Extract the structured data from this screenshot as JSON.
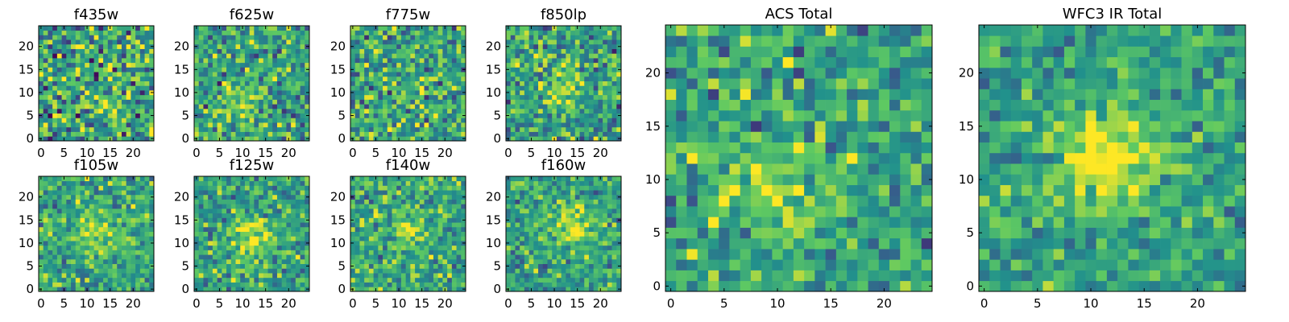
{
  "figure": {
    "colormap": [
      "#440154",
      "#3b528b",
      "#21918c",
      "#5ec962",
      "#fde725"
    ],
    "panels": [
      {
        "id": "f435w",
        "chart_data": {
          "type": "heatmap",
          "title": "f435w",
          "xticks": [
            "0",
            "5",
            "10",
            "15",
            "20"
          ],
          "yticks": [
            "0",
            "5",
            "10",
            "15",
            "20"
          ],
          "xlim": [
            0,
            24
          ],
          "ylim": [
            0,
            24
          ],
          "grid_size": 25,
          "source_center": [
            12,
            12
          ],
          "signal_strength": 0.05,
          "noise_level": 0.36
        }
      },
      {
        "id": "f625w",
        "chart_data": {
          "type": "heatmap",
          "title": "f625w",
          "xticks": [
            "0",
            "5",
            "10",
            "15",
            "20"
          ],
          "yticks": [
            "0",
            "5",
            "10",
            "15",
            "20"
          ],
          "xlim": [
            0,
            24
          ],
          "ylim": [
            0,
            24
          ],
          "grid_size": 25,
          "source_center": [
            9,
            7
          ],
          "signal_strength": 0.18,
          "noise_level": 0.3
        }
      },
      {
        "id": "f775w",
        "chart_data": {
          "type": "heatmap",
          "title": "f775w",
          "xticks": [
            "0",
            "5",
            "10",
            "15",
            "20"
          ],
          "yticks": [
            "0",
            "5",
            "10",
            "15",
            "20"
          ],
          "xlim": [
            0,
            24
          ],
          "ylim": [
            0,
            24
          ],
          "grid_size": 25,
          "source_center": [
            11,
            10
          ],
          "signal_strength": 0.15,
          "noise_level": 0.3
        }
      },
      {
        "id": "f850lp",
        "chart_data": {
          "type": "heatmap",
          "title": "f850lp",
          "xticks": [
            "0",
            "5",
            "10",
            "15",
            "20"
          ],
          "yticks": [
            "0",
            "5",
            "10",
            "15",
            "20"
          ],
          "xlim": [
            0,
            24
          ],
          "ylim": [
            0,
            24
          ],
          "grid_size": 25,
          "source_center": [
            11,
            11
          ],
          "signal_strength": 0.2,
          "noise_level": 0.28
        }
      },
      {
        "id": "f105w",
        "chart_data": {
          "type": "heatmap",
          "title": "f105w",
          "xticks": [
            "0",
            "5",
            "10",
            "15",
            "20"
          ],
          "yticks": [
            "0",
            "5",
            "10",
            "15",
            "20"
          ],
          "xlim": [
            0,
            24
          ],
          "ylim": [
            0,
            24
          ],
          "grid_size": 25,
          "source_center": [
            12,
            12
          ],
          "signal_strength": 0.3,
          "noise_level": 0.24
        }
      },
      {
        "id": "f125w",
        "chart_data": {
          "type": "heatmap",
          "title": "f125w",
          "xticks": [
            "0",
            "5",
            "10",
            "15",
            "20"
          ],
          "yticks": [
            "0",
            "5",
            "10",
            "15",
            "20"
          ],
          "xlim": [
            0,
            24
          ],
          "ylim": [
            0,
            24
          ],
          "grid_size": 25,
          "source_center": [
            12,
            11
          ],
          "signal_strength": 0.35,
          "noise_level": 0.24
        }
      },
      {
        "id": "f140w",
        "chart_data": {
          "type": "heatmap",
          "title": "f140w",
          "xticks": [
            "0",
            "5",
            "10",
            "15",
            "20"
          ],
          "yticks": [
            "0",
            "5",
            "10",
            "15",
            "20"
          ],
          "xlim": [
            0,
            24
          ],
          "ylim": [
            0,
            24
          ],
          "grid_size": 25,
          "source_center": [
            12,
            13
          ],
          "signal_strength": 0.25,
          "noise_level": 0.24
        }
      },
      {
        "id": "f160w",
        "chart_data": {
          "type": "heatmap",
          "title": "f160w",
          "xticks": [
            "0",
            "5",
            "10",
            "15",
            "20"
          ],
          "yticks": [
            "0",
            "5",
            "10",
            "15",
            "20"
          ],
          "xlim": [
            0,
            24
          ],
          "ylim": [
            0,
            24
          ],
          "grid_size": 25,
          "source_center": [
            14,
            14
          ],
          "signal_strength": 0.35,
          "noise_level": 0.22
        }
      },
      {
        "id": "acs-total",
        "chart_data": {
          "type": "heatmap",
          "title": "ACS Total",
          "xticks": [
            "0",
            "5",
            "10",
            "15",
            "20"
          ],
          "yticks": [
            "0",
            "5",
            "10",
            "15",
            "20"
          ],
          "xlim": [
            0,
            24
          ],
          "ylim": [
            0,
            24
          ],
          "grid_size": 25,
          "source_center": [
            10,
            9
          ],
          "signal_strength": 0.3,
          "noise_level": 0.25
        }
      },
      {
        "id": "wfc3-ir-total",
        "chart_data": {
          "type": "heatmap",
          "title": "WFC3 IR Total",
          "xticks": [
            "0",
            "5",
            "10",
            "15",
            "20"
          ],
          "yticks": [
            "0",
            "5",
            "10",
            "15",
            "20"
          ],
          "xlim": [
            0,
            24
          ],
          "ylim": [
            0,
            24
          ],
          "grid_size": 25,
          "source_center": [
            12,
            12
          ],
          "signal_strength": 0.45,
          "noise_level": 0.2
        }
      }
    ]
  }
}
